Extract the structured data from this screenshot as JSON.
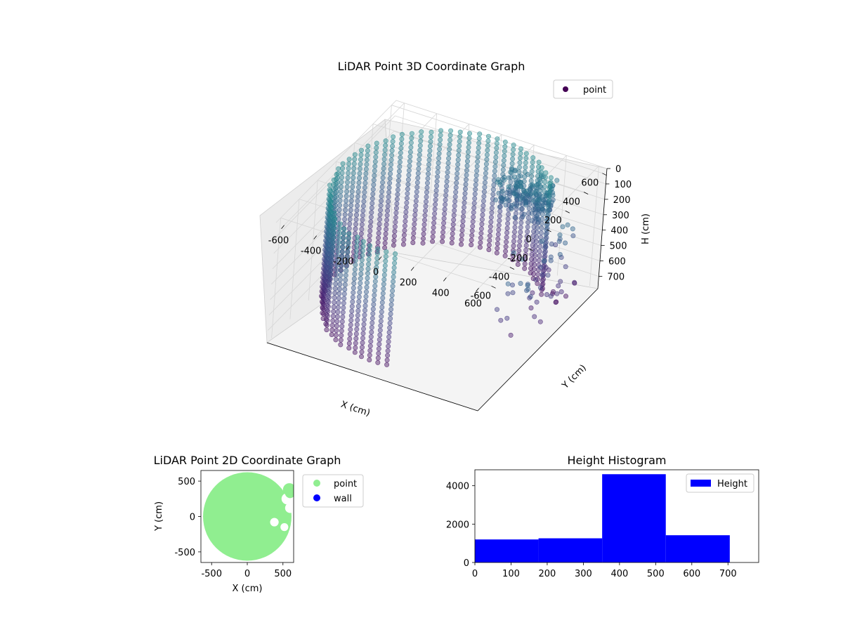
{
  "chart_data": [
    {
      "type": "scatter3d",
      "title": "LiDAR Point 3D Coordinate Graph",
      "xlabel": "X (cm)",
      "ylabel": "Y (cm)",
      "zlabel": "H (cm)",
      "xlim": [
        -650,
        650
      ],
      "ylim": [
        -650,
        650
      ],
      "zlim": [
        0,
        780
      ],
      "z_inverted": true,
      "xticks": [
        -600,
        -400,
        -200,
        0,
        200,
        400,
        600
      ],
      "yticks": [
        -600,
        -400,
        -200,
        0,
        200,
        400,
        600
      ],
      "zticks": [
        0,
        100,
        200,
        300,
        400,
        500,
        600,
        700
      ],
      "legend": [
        {
          "label": "point",
          "color": "#440154"
        }
      ],
      "legend_position": "top-right",
      "colormap": "viridis",
      "description_series": [
        {
          "name": "curved wall shell",
          "angle_range_deg": [
            40,
            270
          ],
          "radius": 600,
          "height_range": [
            0,
            720
          ]
        },
        {
          "name": "dense dark cluster",
          "x_range": [
            100,
            400
          ],
          "y_range": [
            400,
            600
          ],
          "height_range": [
            120,
            320
          ]
        }
      ]
    },
    {
      "type": "scatter",
      "title": "LiDAR Point 2D Coordinate Graph",
      "xlabel": "X (cm)",
      "ylabel": "Y (cm)",
      "xlim": [
        -650,
        650
      ],
      "ylim": [
        -650,
        650
      ],
      "xticks": [
        -500,
        0,
        500
      ],
      "yticks": [
        -500,
        0,
        500
      ],
      "series": [
        {
          "name": "point",
          "color": "#90ee90",
          "shape": "filled disc of radius ~620 centered at (0,0), notched on the right side"
        },
        {
          "name": "wall",
          "color": "#0000ff",
          "points": []
        }
      ],
      "legend": [
        {
          "label": "point",
          "color": "#90ee90"
        },
        {
          "label": "wall",
          "color": "#0000ff"
        }
      ],
      "legend_position": "outside-right"
    },
    {
      "type": "bar",
      "title": "Height Histogram",
      "xlabel": "",
      "ylabel": "",
      "bins": [
        {
          "start": 0,
          "end": 176,
          "value": 1200
        },
        {
          "start": 176,
          "end": 352,
          "value": 1260
        },
        {
          "start": 352,
          "end": 528,
          "value": 4600
        },
        {
          "start": 528,
          "end": 705,
          "value": 1420
        }
      ],
      "xlim": [
        0,
        785
      ],
      "ylim": [
        0,
        4830
      ],
      "xticks": [
        0,
        100,
        200,
        300,
        400,
        500,
        600,
        700
      ],
      "yticks": [
        0,
        2000,
        4000
      ],
      "bar_color": "#0000ff",
      "legend": [
        {
          "label": "Height",
          "color": "#0000ff"
        }
      ],
      "legend_position": "top-right"
    }
  ]
}
